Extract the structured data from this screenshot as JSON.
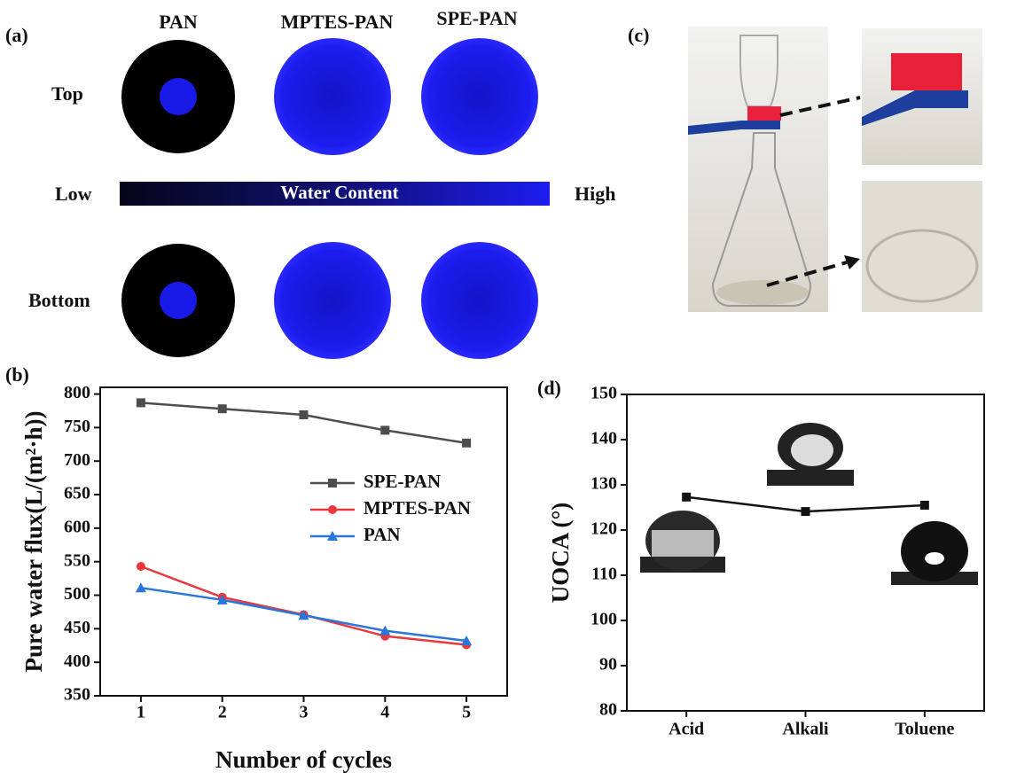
{
  "panels": {
    "a": {
      "label": "(a)",
      "columns": [
        "PAN",
        "MPTES-PAN",
        "SPE-PAN"
      ],
      "rows": [
        "Top",
        "Bottom"
      ],
      "low": "Low",
      "bar": "Water Content",
      "high": "High"
    },
    "b": {
      "label": "(b)"
    },
    "c": {
      "label": "(c)"
    },
    "d": {
      "label": "(d)"
    }
  },
  "chart_data": [
    {
      "type": "line",
      "xlabel": "Number of cycles",
      "ylabel": "Pure water flux(L/(m²·h))",
      "x": [
        1,
        2,
        3,
        4,
        5
      ],
      "xlim": [
        0.5,
        5.5
      ],
      "xticks": [
        1,
        2,
        3,
        4,
        5
      ],
      "ylim": [
        350,
        810
      ],
      "yticks": [
        350,
        400,
        450,
        500,
        550,
        600,
        650,
        700,
        750,
        800
      ],
      "legend": "center right",
      "series": [
        {
          "name": "SPE-PAN",
          "color": "#4d4d4d",
          "marker": "square",
          "values": [
            787,
            778,
            769,
            746,
            727
          ]
        },
        {
          "name": "MPTES-PAN",
          "color": "#e8383d",
          "marker": "circle",
          "values": [
            543,
            497,
            471,
            439,
            426
          ]
        },
        {
          "name": "PAN",
          "color": "#2a75d8",
          "marker": "triangle",
          "values": [
            511,
            493,
            470,
            447,
            432
          ]
        }
      ]
    },
    {
      "type": "line",
      "ylabel": "UOCA (°)",
      "categories": [
        "Acid",
        "Alkali",
        "Toluene"
      ],
      "ylim": [
        80,
        150
      ],
      "yticks": [
        80,
        90,
        100,
        110,
        120,
        130,
        140,
        150
      ],
      "color": "#111111",
      "marker": "square",
      "values": [
        127.3,
        124.1,
        125.5
      ]
    }
  ]
}
